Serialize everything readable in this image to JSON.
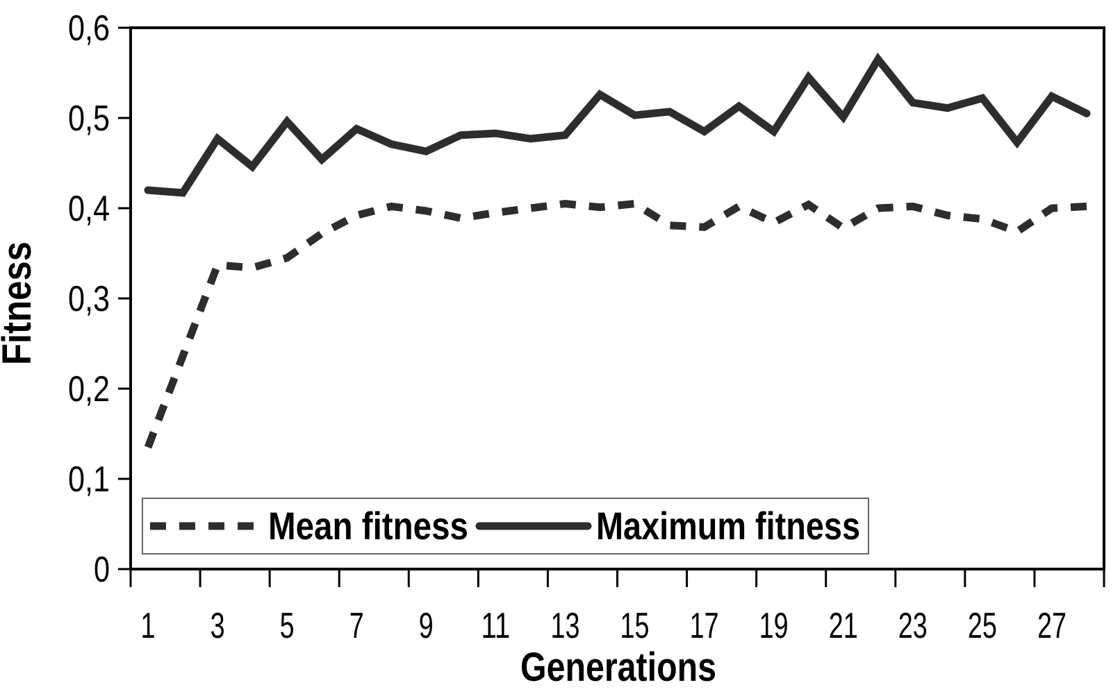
{
  "chart_data": {
    "type": "line",
    "title": "",
    "xlabel": "Generations",
    "ylabel": "Fitness",
    "decimal_separator": ",",
    "grid": false,
    "legend_position": "bottom-left-inside",
    "line_color": "#2d2d2d",
    "x": [
      1,
      2,
      3,
      4,
      5,
      6,
      7,
      8,
      9,
      10,
      11,
      12,
      13,
      14,
      15,
      16,
      17,
      18,
      19,
      20,
      21,
      22,
      23,
      24,
      25,
      26,
      27,
      28
    ],
    "x_tick_labels": [
      "1",
      "3",
      "5",
      "7",
      "9",
      "11",
      "13",
      "15",
      "17",
      "19",
      "21",
      "23",
      "25",
      "27"
    ],
    "y_ticks": [
      0,
      0.1,
      0.2,
      0.3,
      0.4,
      0.5,
      0.6
    ],
    "y_tick_labels": [
      "0",
      "0,1",
      "0,2",
      "0,3",
      "0,4",
      "0,5",
      "0,6"
    ],
    "ylim": [
      0,
      0.6
    ],
    "series": [
      {
        "name": "Mean fitness",
        "style": "dashed",
        "values": [
          0.135,
          0.236,
          0.337,
          0.334,
          0.345,
          0.372,
          0.392,
          0.402,
          0.397,
          0.389,
          0.395,
          0.4,
          0.405,
          0.401,
          0.405,
          0.381,
          0.379,
          0.402,
          0.384,
          0.404,
          0.378,
          0.4,
          0.402,
          0.392,
          0.388,
          0.374,
          0.4,
          0.402
        ]
      },
      {
        "name": "Maximum fitness",
        "style": "solid",
        "values": [
          0.42,
          0.417,
          0.477,
          0.446,
          0.496,
          0.454,
          0.488,
          0.471,
          0.463,
          0.481,
          0.483,
          0.477,
          0.481,
          0.526,
          0.503,
          0.507,
          0.485,
          0.513,
          0.485,
          0.545,
          0.501,
          0.565,
          0.517,
          0.511,
          0.522,
          0.473,
          0.524,
          0.505
        ]
      }
    ]
  }
}
